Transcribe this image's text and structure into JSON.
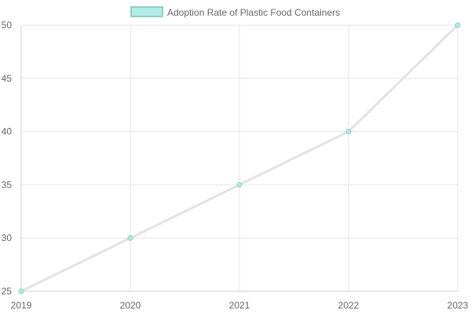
{
  "chart_data": {
    "type": "line",
    "x": [
      "2019",
      "2020",
      "2021",
      "2022",
      "2023"
    ],
    "series": [
      {
        "name": "Adoption Rate of Plastic Food Containers",
        "values": [
          25,
          30,
          35,
          40,
          50
        ],
        "line_color": "#e3e3e3",
        "point_fill": "#b2ebe6",
        "point_stroke": "#8fcfc0"
      }
    ],
    "ylim": [
      25,
      50
    ],
    "yticks": [
      25,
      30,
      35,
      40,
      45,
      50
    ],
    "grid": true,
    "legend_position": "top-center"
  }
}
